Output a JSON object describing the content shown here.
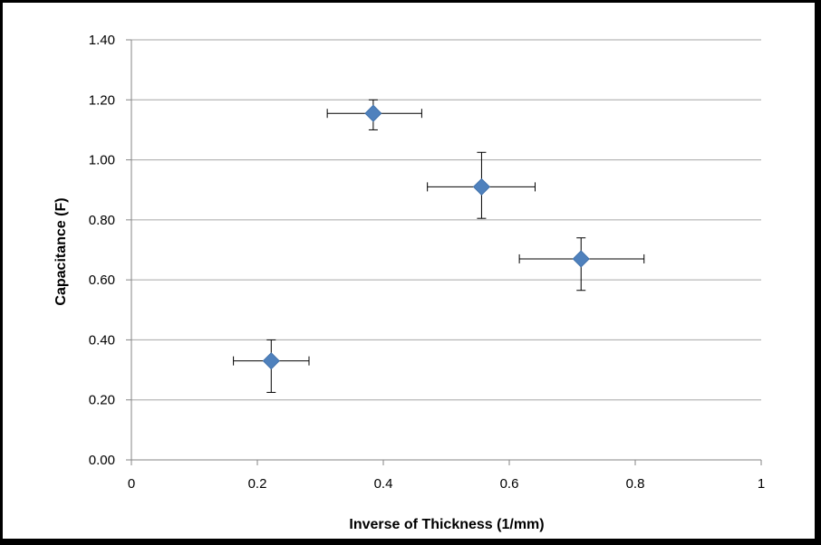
{
  "chart_data": {
    "type": "scatter",
    "title": "",
    "xlabel": "Inverse of Thickness (1/mm)",
    "ylabel": "Capacitance (F)",
    "xlim": [
      0,
      1
    ],
    "ylim": [
      0,
      1.4
    ],
    "x_ticks": [
      0,
      0.2,
      0.4,
      0.6,
      0.8,
      1
    ],
    "x_tick_labels": [
      "0",
      "0.2",
      "0.4",
      "0.6",
      "0.8",
      "1"
    ],
    "y_ticks": [
      0,
      0.2,
      0.4,
      0.6,
      0.8,
      1.0,
      1.2,
      1.4
    ],
    "y_tick_labels": [
      "0.00",
      "0.20",
      "0.40",
      "0.60",
      "0.80",
      "1.00",
      "1.20",
      "1.40"
    ],
    "grid": "horizontal",
    "legend": "none",
    "marker": "diamond",
    "series": [
      {
        "color": "#4F81BD",
        "points": [
          {
            "x": 0.222,
            "y": 0.33,
            "x_err_low": 0.06,
            "x_err_high": 0.06,
            "y_err_low": 0.105,
            "y_err_high": 0.07
          },
          {
            "x": 0.384,
            "y": 1.155,
            "x_err_low": 0.073,
            "x_err_high": 0.077,
            "y_err_low": 0.055,
            "y_err_high": 0.045
          },
          {
            "x": 0.556,
            "y": 0.91,
            "x_err_low": 0.086,
            "x_err_high": 0.085,
            "y_err_low": 0.105,
            "y_err_high": 0.115
          },
          {
            "x": 0.714,
            "y": 0.67,
            "x_err_low": 0.098,
            "x_err_high": 0.1,
            "y_err_low": 0.105,
            "y_err_high": 0.07
          }
        ]
      }
    ],
    "colors": {
      "gridline": "#A6A6A6",
      "axis": "#868686",
      "error_bar": "#000000"
    }
  }
}
